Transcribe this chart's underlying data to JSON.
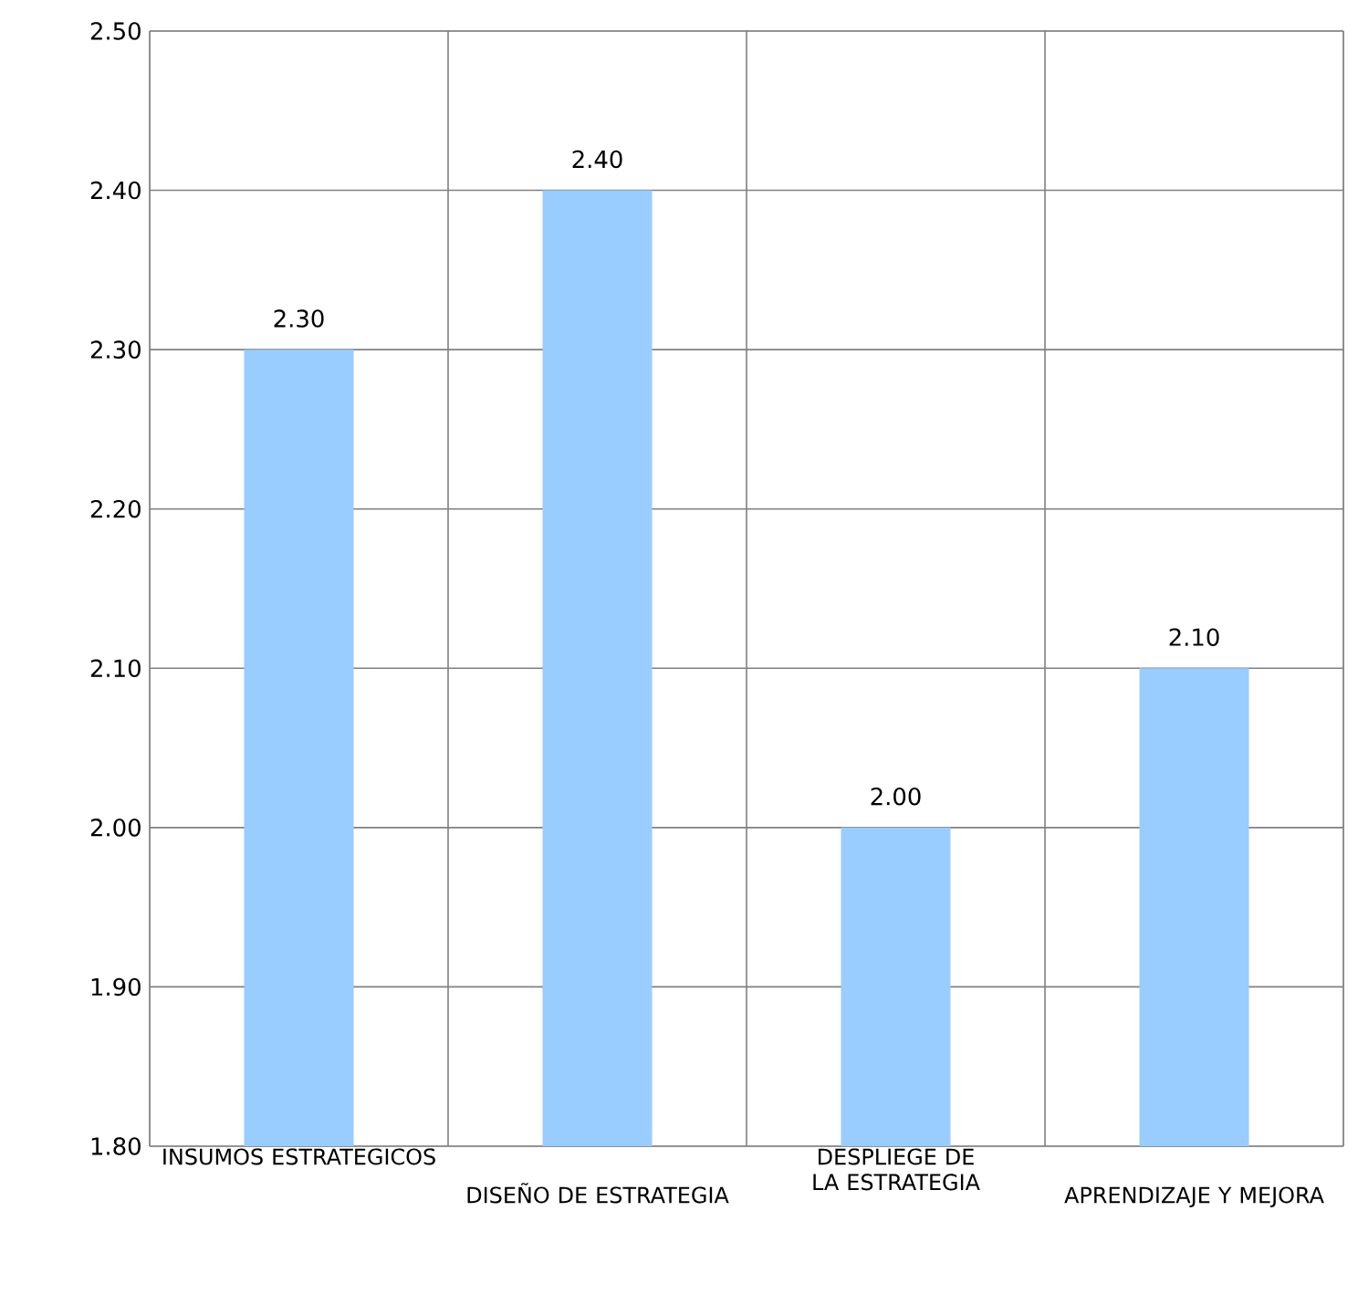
{
  "chart_data": {
    "type": "bar",
    "categories": [
      "INSUMOS ESTRATEGICOS",
      "DISEÑO DE ESTRATEGIA",
      "DESPLIEGE DE LA ESTRATEGIA",
      "APRENDIZAJE Y MEJORA"
    ],
    "values": [
      2.3,
      2.4,
      2.0,
      2.1
    ],
    "value_labels": [
      "2.30",
      "2.40",
      "2.00",
      "2.10"
    ],
    "color": "#99ccff",
    "grid": true,
    "ylim": [
      1.8,
      2.5
    ],
    "yticks": [
      {
        "value": 1.8,
        "label": "1.80"
      },
      {
        "value": 1.9,
        "label": "1.90"
      },
      {
        "value": 2.0,
        "label": "2.00"
      },
      {
        "value": 2.1,
        "label": "2.10"
      },
      {
        "value": 2.2,
        "label": "2.20"
      },
      {
        "value": 2.3,
        "label": "2.30"
      },
      {
        "value": 2.4,
        "label": "2.40"
      },
      {
        "value": 2.5,
        "label": "2.50"
      }
    ]
  }
}
